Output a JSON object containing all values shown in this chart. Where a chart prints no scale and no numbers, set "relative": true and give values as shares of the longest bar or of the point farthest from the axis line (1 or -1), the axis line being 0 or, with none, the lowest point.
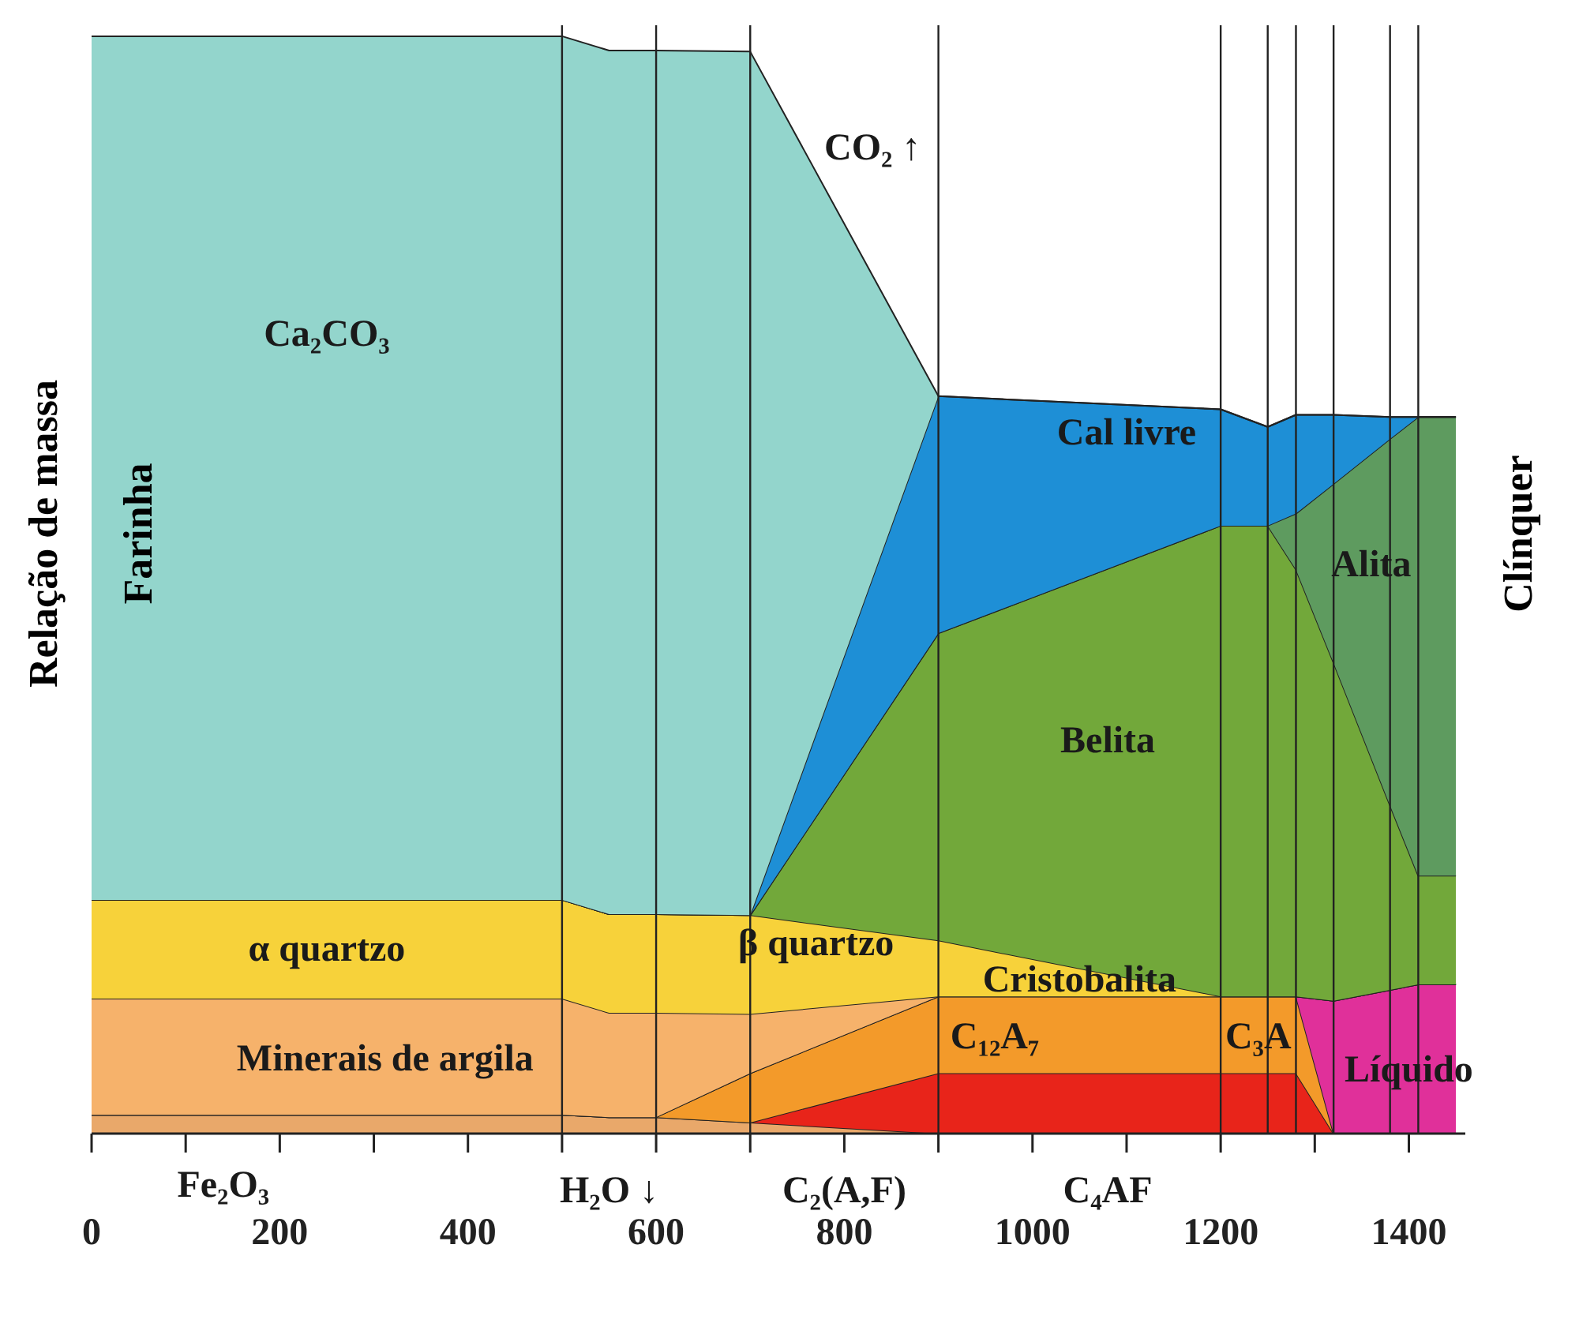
{
  "chart_data": {
    "type": "area",
    "stacked": true,
    "relative": true,
    "ylabel": "Relação de massa",
    "x": [
      0,
      500,
      550,
      600,
      700,
      900,
      1200,
      1250,
      1280,
      1320,
      1380,
      1410,
      1450
    ],
    "xlim": [
      0,
      1460
    ],
    "xticks": [
      0,
      {
        "value": 100,
        "label": null
      },
      200,
      {
        "value": 300,
        "label": null
      },
      400,
      {
        "value": 500,
        "label": null
      },
      600,
      {
        "value": 700,
        "label": null
      },
      800,
      {
        "value": 900,
        "label": null
      },
      1000,
      {
        "value": 1100,
        "label": null
      },
      1200,
      {
        "value": 1300,
        "label": null
      },
      1400
    ],
    "series": [
      {
        "color": "#e9a86a",
        "values": [
          0.017,
          0.017,
          0.015,
          0.015,
          0.01,
          0,
          0,
          0,
          0,
          0,
          0,
          0,
          0
        ]
      },
      {
        "color": "#e8241a",
        "values": [
          0,
          0,
          0,
          0,
          0,
          0.055,
          0.055,
          0.055,
          0.055,
          0,
          0,
          0,
          0
        ]
      },
      {
        "color": "#f39a2a",
        "values": [
          0,
          0,
          0,
          0,
          0.045,
          0.07,
          0.07,
          0.07,
          0.07,
          0,
          0,
          0,
          0
        ]
      },
      {
        "color": "#e0309a",
        "values": [
          0,
          0,
          0,
          0,
          0,
          0,
          0,
          0,
          0,
          0.121,
          0.131,
          0.136,
          0.136
        ]
      },
      {
        "color": "#f6b26b",
        "values": [
          0.106,
          0.106,
          0.095,
          0.095,
          0.054,
          0,
          0,
          0,
          0,
          0,
          0,
          0,
          0
        ]
      },
      {
        "color": "#f7d23a",
        "values": [
          0.09,
          0.09,
          0.09,
          0.09,
          0.09,
          0.051,
          0,
          0,
          0,
          0,
          0,
          0,
          0
        ]
      },
      {
        "color": "#72a83a",
        "values": [
          0,
          0,
          0,
          0,
          0,
          0.28,
          0.429,
          0.429,
          0.389,
          0.308,
          0.168,
          0.099,
          0.099
        ]
      },
      {
        "color": "#5e9b5f",
        "values": [
          0,
          0,
          0,
          0,
          0,
          0,
          0,
          0,
          0.051,
          0.163,
          0.334,
          0.418,
          0.418
        ]
      },
      {
        "color": "#1e8fd6",
        "values": [
          0,
          0,
          0,
          0,
          0,
          0.216,
          0.106,
          0.09,
          0.09,
          0.063,
          0.02,
          0,
          0
        ]
      },
      {
        "color": "#93d5cc",
        "values": [
          0.787,
          0.787,
          0.787,
          0.787,
          0.787,
          0,
          0,
          0,
          0,
          0,
          0,
          0,
          0
        ]
      }
    ],
    "ref_lines": [
      {
        "axis": "x",
        "value": 500
      },
      {
        "axis": "x",
        "value": 600
      },
      {
        "axis": "x",
        "value": 700
      },
      {
        "axis": "x",
        "value": 900
      },
      {
        "axis": "x",
        "value": 1200
      },
      {
        "axis": "x",
        "value": 1250
      },
      {
        "axis": "x",
        "value": 1280
      },
      {
        "axis": "x",
        "value": 1320
      },
      {
        "axis": "x",
        "value": 1380
      },
      {
        "axis": "x",
        "value": 1410
      }
    ],
    "annotations": [
      "Farinha",
      "Clínquer",
      "Ca₂CO₃",
      "CO₂ ↑",
      "Cal livre",
      "Belita",
      "Alita",
      "α quartzo",
      "β quartzo",
      "Cristobalita",
      "Minerais de argila",
      "C₁₂A₇",
      "C₃A",
      "Líquido",
      "Fe₂O₃",
      "H₂O ↓",
      "C₂(A,F)",
      "C₄AF"
    ]
  }
}
